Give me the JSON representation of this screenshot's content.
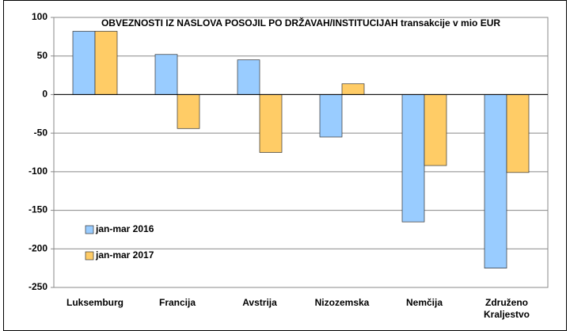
{
  "chart_data": {
    "type": "bar",
    "title": "OBVEZNOSTI IZ NASLOVA POSOJIL PO DRŽAVAH/INSTITUCIJAH transakcije v mio EUR",
    "categories": [
      "Luksemburg",
      "Francija",
      "Avstrija",
      "Nizozemska",
      "Nemčija",
      "Združeno Kraljestvo"
    ],
    "series": [
      {
        "name": "jan-mar 2016",
        "color": "#99ccff",
        "values": [
          82,
          52,
          45,
          -55,
          -165,
          -225
        ]
      },
      {
        "name": "jan-mar 2017",
        "color": "#ffcc66",
        "values": [
          82,
          -44,
          -75,
          14,
          -92,
          -101
        ]
      }
    ],
    "ylim": [
      -250,
      100
    ],
    "yticks": [
      -250,
      -200,
      -150,
      -100,
      -50,
      0,
      50,
      100
    ],
    "grid": true,
    "legend": "lower left"
  }
}
